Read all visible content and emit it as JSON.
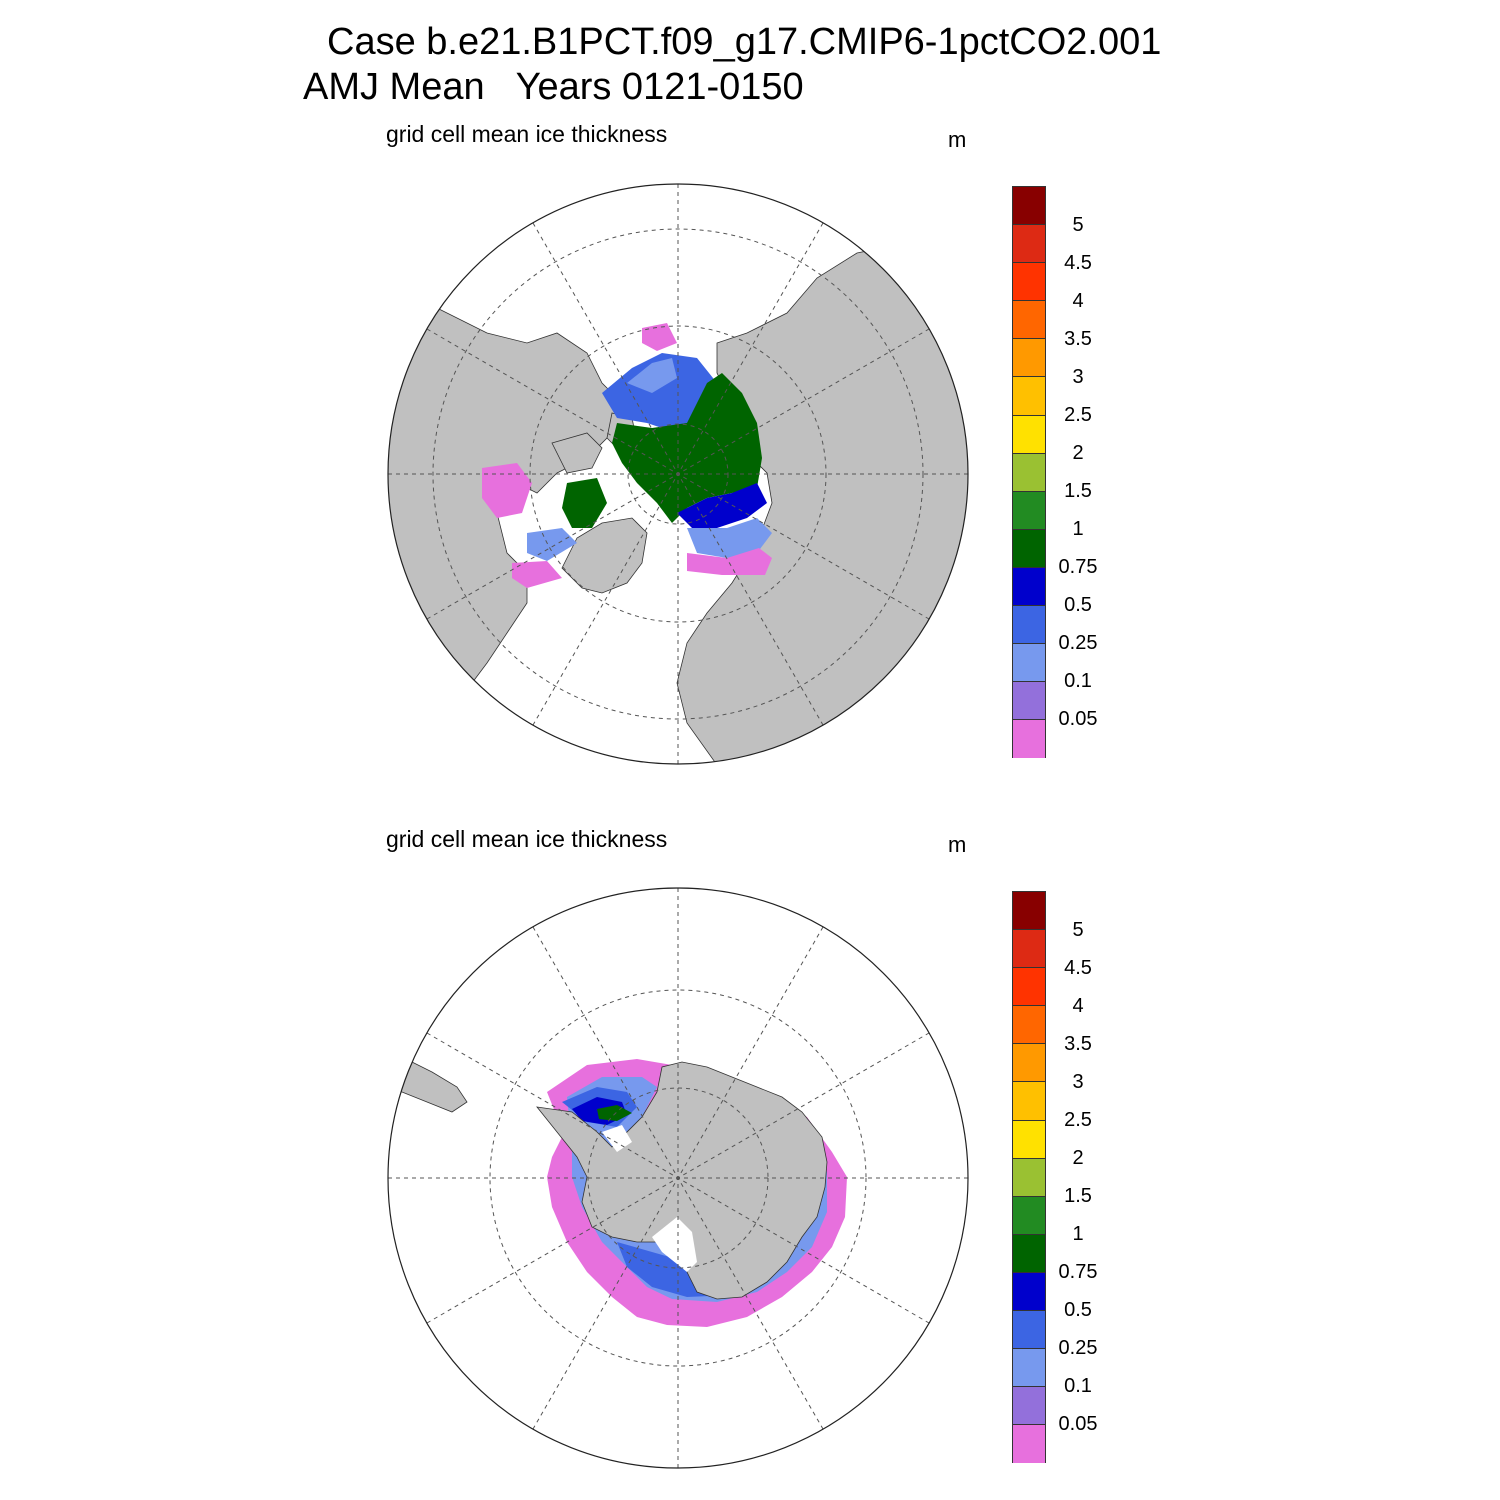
{
  "title_line1": "Case b.e21.B1PCT.f09_g17.CMIP6-1pctCO2.001",
  "title_line2": "AMJ Mean   Years 0121-0150",
  "colors": {
    "land": "#c0c0c0",
    "ocean": "#ffffff",
    "levels": [
      "#e770dd",
      "#9370db",
      "#7799ee",
      "#3c65e3",
      "#0000cc",
      "#006400",
      "#228b22",
      "#9ac132",
      "#ffe100",
      "#ffc000",
      "#ff9900",
      "#ff6600",
      "#ff3300",
      "#dd2a14",
      "#880000"
    ]
  },
  "colorbar": {
    "tick_labels": [
      "0.05",
      "0.1",
      "0.25",
      "0.5",
      "0.75",
      "1",
      "1.5",
      "2",
      "2.5",
      "3",
      "3.5",
      "4",
      "4.5",
      "5"
    ]
  },
  "panels": [
    {
      "id": "north",
      "label": "grid cell mean ice thickness",
      "unit": "m",
      "hemisphere": "Arctic (north polar stereographic)"
    },
    {
      "id": "south",
      "label": "grid cell mean ice thickness",
      "unit": "m",
      "hemisphere": "Antarctic (south polar stereographic)"
    }
  ]
}
